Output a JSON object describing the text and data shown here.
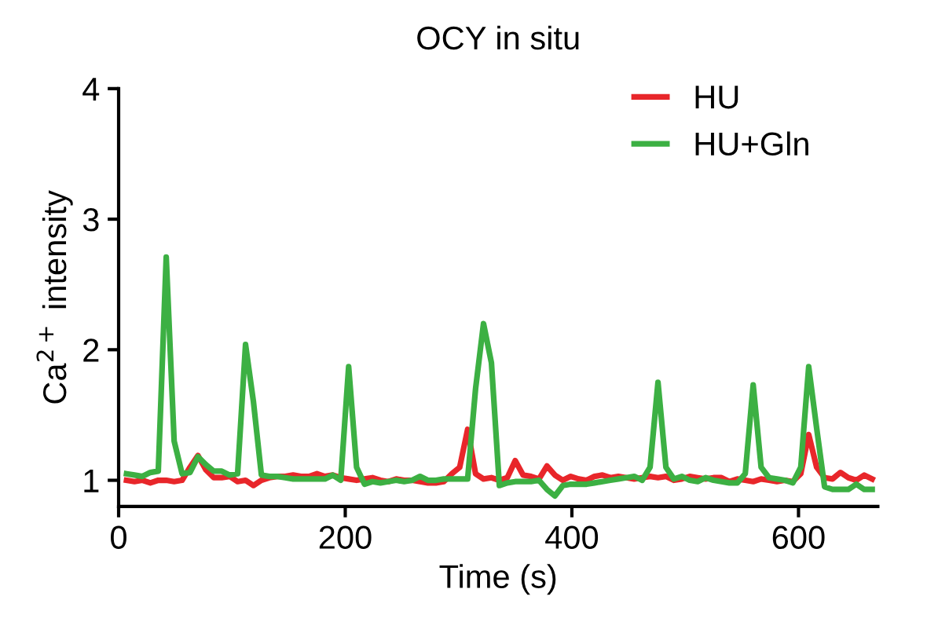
{
  "chart_data": {
    "type": "line",
    "title": "OCY in situ",
    "xlabel": "Time (s)",
    "ylabel": "Ca$^{2+}$ intensity",
    "x": [
      7,
      14,
      21,
      28,
      35,
      42,
      49,
      56,
      63,
      70,
      77,
      84,
      91,
      98,
      105,
      112,
      119,
      126,
      133,
      140,
      147,
      154,
      161,
      168,
      175,
      182,
      189,
      196,
      203,
      210,
      217,
      224,
      231,
      238,
      245,
      252,
      259,
      266,
      273,
      280,
      287,
      294,
      301,
      308,
      315,
      322,
      329,
      336,
      343,
      350,
      357,
      364,
      371,
      378,
      385,
      392,
      399,
      406,
      413,
      420,
      427,
      434,
      441,
      448,
      455,
      462,
      469,
      476,
      483,
      490,
      497,
      504,
      511,
      518,
      525,
      532,
      539,
      546,
      553,
      560,
      567,
      574,
      581,
      588,
      595,
      602,
      609,
      616,
      623,
      630,
      637,
      644,
      651,
      658,
      665
    ],
    "series": [
      {
        "name": "HU",
        "color": "#e8262a",
        "values": [
          1.0,
          0.99,
          1.0,
          0.98,
          1.0,
          1.0,
          0.99,
          1.0,
          1.1,
          1.19,
          1.08,
          1.02,
          1.02,
          1.03,
          0.99,
          1.0,
          0.96,
          1.0,
          1.02,
          1.03,
          1.03,
          1.04,
          1.03,
          1.03,
          1.05,
          1.03,
          1.04,
          1.02,
          1.01,
          1.0,
          1.01,
          1.02,
          1.0,
          0.99,
          1.01,
          1.0,
          1.0,
          0.99,
          0.98,
          0.98,
          0.99,
          1.05,
          1.1,
          1.39,
          1.05,
          1.01,
          1.02,
          1.0,
          1.02,
          1.15,
          1.04,
          1.03,
          1.01,
          1.11,
          1.04,
          1.0,
          1.03,
          1.01,
          1.0,
          1.03,
          1.04,
          1.02,
          1.03,
          1.02,
          1.01,
          1.02,
          1.03,
          1.02,
          1.03,
          1.0,
          1.01,
          1.03,
          1.02,
          1.01,
          1.02,
          1.02,
          0.99,
          1.01,
          1.0,
          0.99,
          1.01,
          1.0,
          0.99,
          1.0,
          0.99,
          1.05,
          1.35,
          1.1,
          1.02,
          1.01,
          1.06,
          1.02,
          1.0,
          1.04,
          1.01
        ]
      },
      {
        "name": "HU+Gln",
        "color": "#3cb043",
        "values": [
          1.05,
          1.04,
          1.03,
          1.06,
          1.07,
          2.71,
          1.3,
          1.05,
          1.06,
          1.18,
          1.12,
          1.07,
          1.07,
          1.04,
          1.05,
          2.04,
          1.6,
          1.04,
          1.03,
          1.03,
          1.02,
          1.01,
          1.01,
          1.01,
          1.01,
          1.01,
          1.04,
          1.0,
          1.87,
          1.1,
          0.97,
          0.99,
          0.98,
          0.99,
          1.0,
          0.99,
          1.0,
          1.03,
          1.0,
          1.0,
          1.01,
          1.01,
          1.01,
          1.01,
          1.7,
          2.2,
          1.9,
          0.96,
          0.98,
          0.99,
          0.99,
          0.99,
          1.0,
          0.93,
          0.88,
          0.96,
          0.97,
          0.97,
          0.97,
          0.98,
          0.99,
          1.0,
          1.01,
          1.02,
          1.03,
          1.0,
          1.1,
          1.75,
          1.1,
          1.01,
          1.03,
          1.0,
          0.99,
          1.02,
          1.0,
          0.99,
          0.98,
          0.98,
          1.05,
          1.73,
          1.1,
          1.02,
          1.01,
          1.0,
          0.98,
          1.1,
          1.87,
          1.4,
          0.95,
          0.93,
          0.93,
          0.93,
          0.97,
          0.93,
          0.93
        ]
      }
    ],
    "xlim": [
      0,
      670
    ],
    "ylim": [
      0.8,
      4
    ],
    "xticks": [
      0,
      200,
      400,
      600
    ],
    "yticks": [
      1,
      2,
      3,
      4
    ],
    "grid": false,
    "legend": "top right",
    "marker": "none",
    "line_style": "solid"
  }
}
